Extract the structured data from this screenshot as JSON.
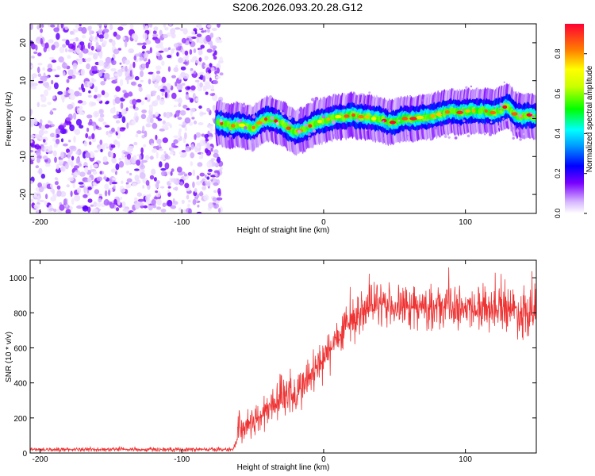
{
  "title": "S206.2026.093.20.28.G12",
  "chart_data": [
    {
      "type": "heatmap",
      "xlabel": "Height of straight line (km)",
      "ylabel": "Frequency (Hz)",
      "xlim": [
        -207,
        150
      ],
      "ylim": [
        -25,
        25
      ],
      "xticks": [
        -200,
        -100,
        0,
        100
      ],
      "yticks": [
        -20,
        -10,
        0,
        10,
        20
      ],
      "noise_region_x": [
        -207,
        -72
      ],
      "ridge": {
        "x": [
          -75,
          -70,
          -65,
          -60,
          -55,
          -50,
          -45,
          -40,
          -35,
          -30,
          -25,
          -20,
          -15,
          -10,
          -5,
          0,
          5,
          10,
          15,
          20,
          25,
          30,
          35,
          40,
          45,
          50,
          55,
          60,
          65,
          70,
          75,
          80,
          85,
          90,
          95,
          100,
          105,
          110,
          115,
          120,
          125,
          130,
          135,
          140,
          145,
          150
        ],
        "frequency": [
          -1,
          -1.5,
          -2,
          -1.5,
          -2,
          -2.5,
          -1,
          0,
          -0.5,
          -1,
          -2.5,
          -3.5,
          -3,
          -2,
          -1,
          -0.5,
          0,
          0.5,
          0.5,
          1,
          0.5,
          0.5,
          0,
          0,
          -1,
          -1,
          0,
          0,
          0,
          0.5,
          0.5,
          1,
          1.5,
          2,
          1.5,
          2,
          2,
          2,
          2,
          1.5,
          2.5,
          3.5,
          1,
          0.5,
          1,
          0.5
        ]
      },
      "colorbar": {
        "label": "Normalized spectral amplitude",
        "range": [
          0,
          0.95
        ],
        "ticks": [
          "0.0",
          "0.2",
          "0.4",
          "0.6",
          "0.8"
        ],
        "tick_values": [
          0,
          0.2,
          0.4,
          0.6,
          0.8
        ]
      }
    },
    {
      "type": "line",
      "xlabel": "Height of straight line (km)",
      "ylabel": "SNR (10 * v/v)",
      "xlim": [
        -207,
        150
      ],
      "ylim": [
        0,
        1100
      ],
      "xticks": [
        -200,
        -100,
        0,
        100
      ],
      "yticks": [
        0,
        200,
        400,
        600,
        800,
        1000
      ],
      "series": [
        {
          "name": "SNR",
          "color": "#ee3333",
          "x": [
            -207,
            -100,
            -70,
            -65,
            -63,
            -61,
            -60,
            -58,
            -55,
            -50,
            -45,
            -40,
            -35,
            -30,
            -28,
            -25,
            -24,
            -23,
            -20,
            -15,
            -10,
            -5,
            0,
            5,
            10,
            15,
            20,
            25,
            30,
            40,
            50,
            60,
            70,
            80,
            90,
            100,
            110,
            120,
            130,
            135,
            140,
            145,
            150
          ],
          "values": [
            20,
            20,
            20,
            20,
            30,
            80,
            200,
            130,
            150,
            180,
            200,
            250,
            280,
            330,
            360,
            300,
            470,
            320,
            320,
            380,
            430,
            470,
            520,
            590,
            660,
            710,
            760,
            800,
            820,
            840,
            840,
            830,
            830,
            830,
            840,
            830,
            830,
            830,
            830,
            820,
            790,
            840,
            800
          ],
          "noise_amplitude": [
            15,
            15,
            15,
            15,
            20,
            60,
            130,
            110,
            110,
            120,
            130,
            140,
            150,
            160,
            170,
            160,
            300,
            170,
            160,
            160,
            170,
            170,
            180,
            170,
            170,
            170,
            160,
            160,
            150,
            150,
            150,
            150,
            150,
            150,
            150,
            150,
            150,
            150,
            150,
            160,
            190,
            200,
            230
          ]
        }
      ]
    }
  ]
}
